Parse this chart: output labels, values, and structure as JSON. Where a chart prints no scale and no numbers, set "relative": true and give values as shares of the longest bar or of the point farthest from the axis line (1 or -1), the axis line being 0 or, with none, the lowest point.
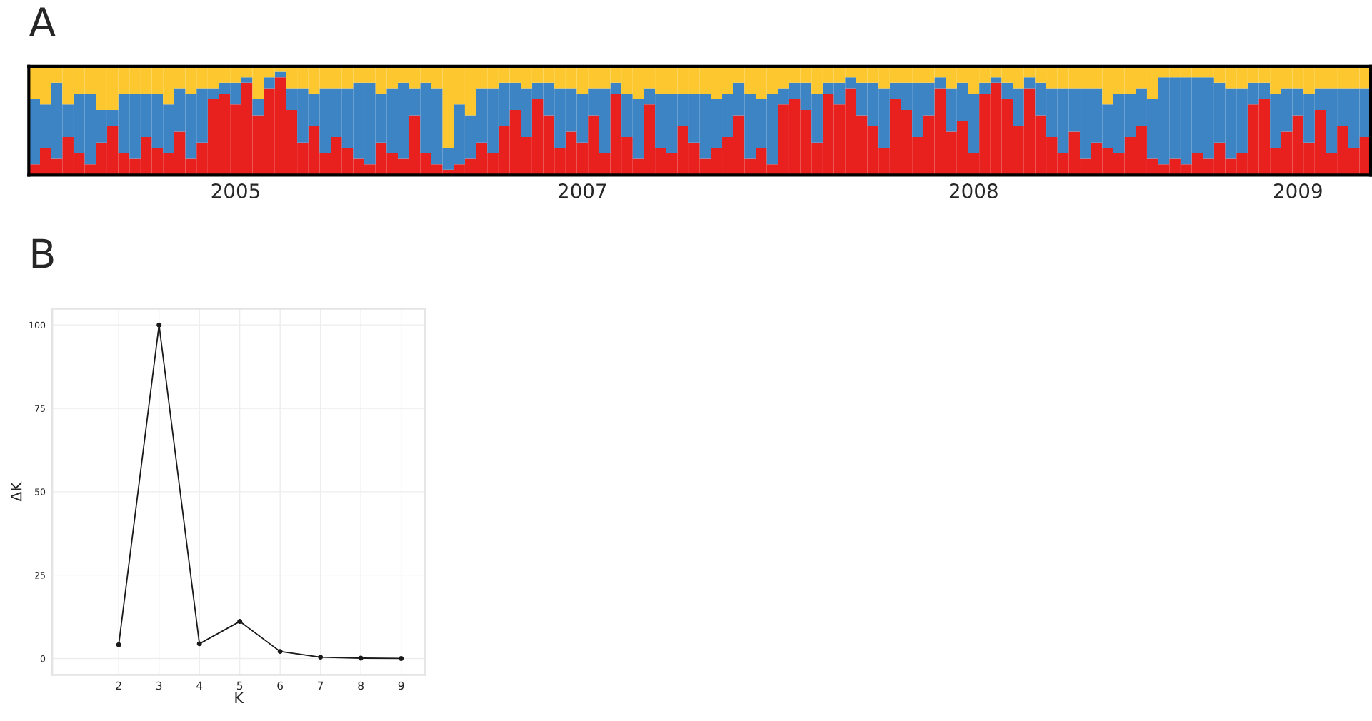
{
  "chart_data": [
    {
      "type": "bar",
      "title": "A",
      "stacked": true,
      "relative": true,
      "categories": [
        null,
        null,
        null,
        null,
        null,
        null,
        null,
        null,
        null,
        null,
        null,
        null,
        null,
        null,
        null,
        null,
        null,
        null,
        "2005",
        null,
        null,
        null,
        null,
        null,
        null,
        null,
        null,
        null,
        null,
        null,
        null,
        null,
        null,
        null,
        null,
        null,
        null,
        null,
        null,
        null,
        null,
        null,
        null,
        null,
        null,
        null,
        null,
        null,
        null,
        "2007",
        null,
        null,
        null,
        null,
        null,
        null,
        null,
        null,
        null,
        null,
        null,
        null,
        null,
        null,
        null,
        null,
        null,
        null,
        null,
        null,
        null,
        null,
        null,
        null,
        null,
        null,
        null,
        null,
        null,
        null,
        null,
        null,
        null,
        null,
        "2008",
        null,
        null,
        null,
        null,
        null,
        null,
        null,
        null,
        null,
        null,
        null,
        null,
        null,
        null,
        null,
        null,
        null,
        null,
        null,
        null,
        null,
        null,
        null,
        null,
        null,
        null,
        null,
        null,
        "2009",
        null,
        null,
        null,
        null,
        null,
        null
      ],
      "series": [
        {
          "color": "#e8211f",
          "values": [
            0.1,
            0.25,
            0.15,
            0.35,
            0.2,
            0.1,
            0.3,
            0.45,
            0.2,
            0.15,
            0.35,
            0.25,
            0.2,
            0.4,
            0.15,
            0.3,
            0.7,
            0.75,
            0.65,
            0.85,
            0.55,
            0.8,
            0.9,
            0.6,
            0.3,
            0.45,
            0.2,
            0.35,
            0.25,
            0.15,
            0.1,
            0.3,
            0.2,
            0.15,
            0.55,
            0.2,
            0.1,
            0.05,
            0.1,
            0.15,
            0.3,
            0.2,
            0.45,
            0.6,
            0.35,
            0.7,
            0.55,
            0.25,
            0.4,
            0.3,
            0.55,
            0.2,
            0.75,
            0.35,
            0.15,
            0.65,
            0.25,
            0.2,
            0.45,
            0.3,
            0.15,
            0.25,
            0.35,
            0.55,
            0.15,
            0.25,
            0.1,
            0.65,
            0.7,
            0.6,
            0.3,
            0.75,
            0.65,
            0.8,
            0.55,
            0.45,
            0.25,
            0.7,
            0.6,
            0.35,
            0.55,
            0.8,
            0.4,
            0.5,
            0.2,
            0.75,
            0.85,
            0.7,
            0.45,
            0.8,
            0.55,
            0.35,
            0.2,
            0.4,
            0.15,
            0.3,
            0.25,
            0.2,
            0.35,
            0.45,
            0.15,
            0.1,
            0.15,
            0.1,
            0.2,
            0.15,
            0.3,
            0.15,
            0.2,
            0.65,
            0.7,
            0.25,
            0.4,
            0.55,
            0.3,
            0.6,
            0.2,
            0.45,
            0.25,
            0.35
          ]
        },
        {
          "color": "#3d84c4",
          "values": [
            0.6,
            0.4,
            0.7,
            0.3,
            0.55,
            0.65,
            0.3,
            0.15,
            0.55,
            0.6,
            0.4,
            0.5,
            0.45,
            0.4,
            0.6,
            0.5,
            0.1,
            0.1,
            0.2,
            0.05,
            0.15,
            0.1,
            0.05,
            0.2,
            0.5,
            0.3,
            0.6,
            0.45,
            0.55,
            0.7,
            0.75,
            0.45,
            0.6,
            0.7,
            0.25,
            0.65,
            0.7,
            0.2,
            0.55,
            0.4,
            0.5,
            0.6,
            0.4,
            0.25,
            0.45,
            0.15,
            0.3,
            0.55,
            0.4,
            0.45,
            0.25,
            0.6,
            0.1,
            0.4,
            0.55,
            0.15,
            0.5,
            0.55,
            0.3,
            0.45,
            0.6,
            0.45,
            0.4,
            0.3,
            0.6,
            0.45,
            0.65,
            0.15,
            0.15,
            0.25,
            0.45,
            0.1,
            0.2,
            0.1,
            0.3,
            0.4,
            0.55,
            0.15,
            0.25,
            0.5,
            0.3,
            0.1,
            0.4,
            0.35,
            0.55,
            0.1,
            0.05,
            0.15,
            0.35,
            0.1,
            0.3,
            0.45,
            0.6,
            0.4,
            0.65,
            0.5,
            0.4,
            0.55,
            0.4,
            0.35,
            0.55,
            0.8,
            0.75,
            0.8,
            0.7,
            0.75,
            0.55,
            0.65,
            0.6,
            0.2,
            0.15,
            0.5,
            0.4,
            0.25,
            0.45,
            0.2,
            0.6,
            0.35,
            0.55,
            0.45
          ]
        },
        {
          "color": "#fdc82f",
          "values": [
            0.3,
            0.35,
            0.15,
            0.35,
            0.25,
            0.25,
            0.4,
            0.4,
            0.25,
            0.25,
            0.25,
            0.25,
            0.35,
            0.2,
            0.25,
            0.2,
            0.2,
            0.15,
            0.15,
            0.1,
            0.3,
            0.1,
            0.05,
            0.2,
            0.2,
            0.25,
            0.2,
            0.2,
            0.2,
            0.15,
            0.15,
            0.25,
            0.2,
            0.15,
            0.2,
            0.15,
            0.2,
            0.75,
            0.35,
            0.45,
            0.2,
            0.2,
            0.15,
            0.15,
            0.2,
            0.15,
            0.15,
            0.2,
            0.2,
            0.25,
            0.2,
            0.2,
            0.15,
            0.25,
            0.3,
            0.2,
            0.25,
            0.25,
            0.25,
            0.25,
            0.25,
            0.3,
            0.25,
            0.15,
            0.25,
            0.3,
            0.25,
            0.2,
            0.15,
            0.15,
            0.25,
            0.15,
            0.15,
            0.1,
            0.15,
            0.15,
            0.2,
            0.15,
            0.15,
            0.15,
            0.15,
            0.1,
            0.2,
            0.15,
            0.25,
            0.15,
            0.1,
            0.15,
            0.2,
            0.1,
            0.15,
            0.2,
            0.2,
            0.2,
            0.2,
            0.2,
            0.35,
            0.25,
            0.25,
            0.2,
            0.3,
            0.1,
            0.1,
            0.1,
            0.1,
            0.1,
            0.15,
            0.2,
            0.2,
            0.15,
            0.15,
            0.25,
            0.2,
            0.2,
            0.25,
            0.2,
            0.2,
            0.2,
            0.2,
            0.2
          ]
        }
      ]
    },
    {
      "type": "line",
      "title": "B",
      "xlabel": "K",
      "ylabel": "ΔK",
      "grid": true,
      "marker": "circle",
      "line_style": "solid",
      "x": [
        2,
        3,
        4,
        5,
        6,
        7,
        8,
        9
      ],
      "series": [
        {
          "color": "#1a1a1a",
          "values": [
            4.1,
            100,
            4.4,
            11.1,
            2.1,
            0.4,
            0.1,
            0
          ]
        }
      ],
      "xlim": [
        0.35,
        9.6
      ],
      "ylim": [
        -4.9,
        104.9
      ],
      "xticks": [
        2,
        3,
        4,
        5,
        6,
        7,
        8,
        9
      ],
      "yticks": [
        0,
        25,
        50,
        75,
        100
      ]
    }
  ]
}
